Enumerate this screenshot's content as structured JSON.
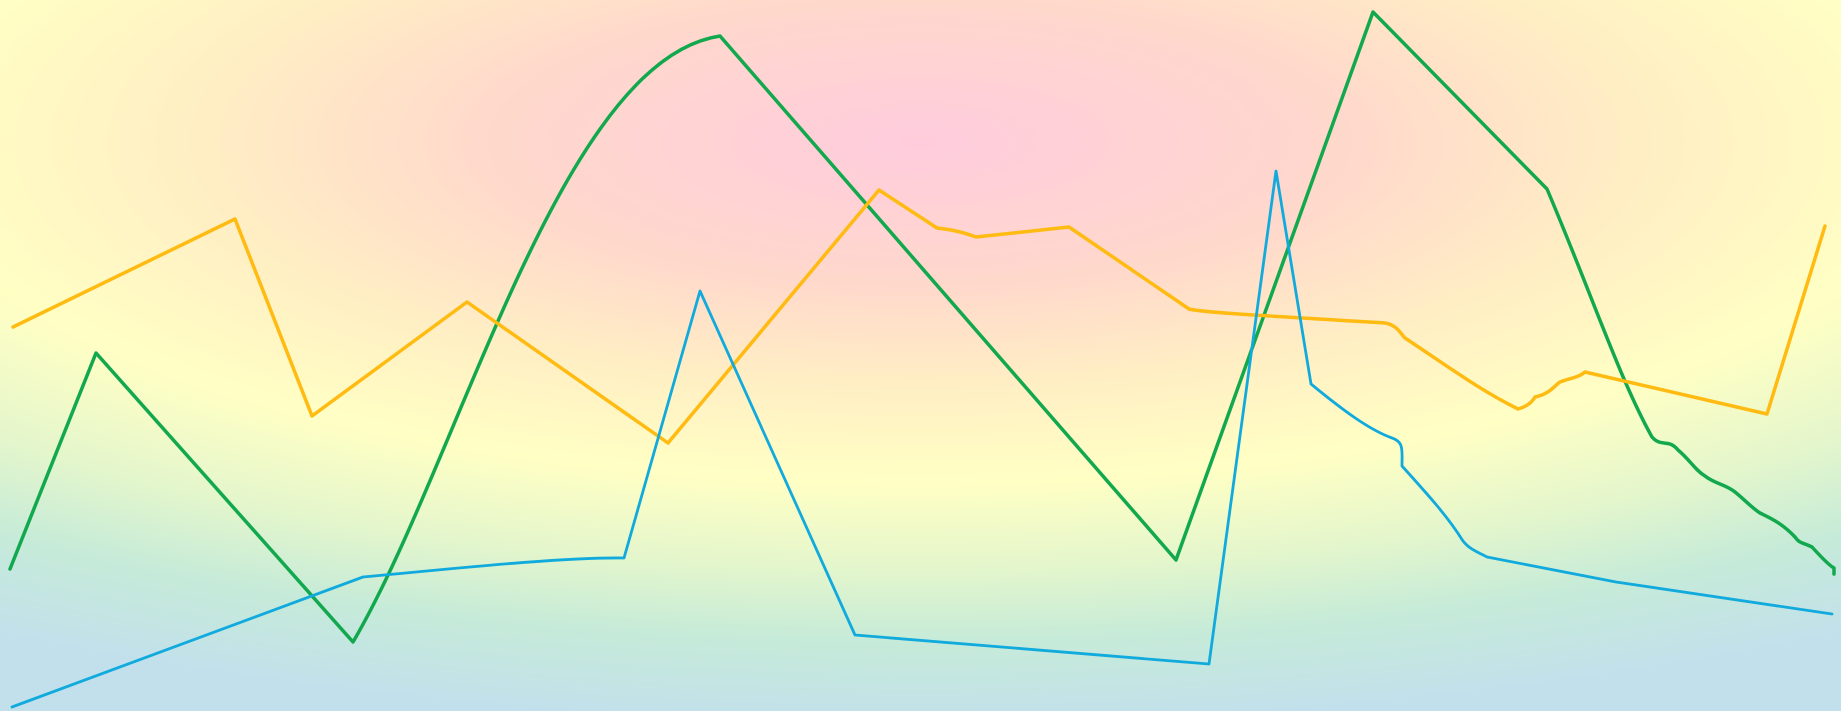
{
  "background": {
    "center_color": "#ffccdd",
    "mid_color": "#ffffc4",
    "edge_color": "#c2e0ec"
  },
  "lines": [
    {
      "name": "green-line",
      "color": "#12a84e"
    },
    {
      "name": "orange-line",
      "color": "#ffbb11"
    },
    {
      "name": "blue-line",
      "color": "#11aadd"
    }
  ]
}
